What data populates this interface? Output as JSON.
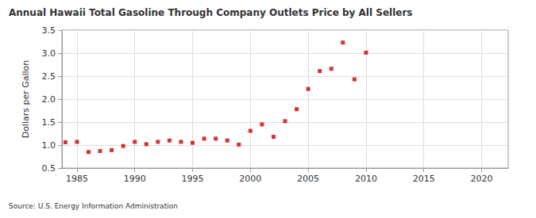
{
  "chart_data": {
    "type": "scatter",
    "title": "Annual Hawaii Total Gasoline Through Company Outlets Price by All Sellers",
    "y_label": "Dollars per Gallon",
    "source": "Source: U.S. Energy Information Administration",
    "x": [
      1984,
      1985,
      1986,
      1987,
      1988,
      1989,
      1990,
      1991,
      1992,
      1993,
      1994,
      1995,
      1996,
      1997,
      1998,
      1999,
      2000,
      2001,
      2002,
      2003,
      2004,
      2005,
      2006,
      2007,
      2008,
      2009,
      2010
    ],
    "values": [
      1.06,
      1.07,
      0.85,
      0.87,
      0.89,
      0.98,
      1.07,
      1.02,
      1.07,
      1.1,
      1.07,
      1.05,
      1.14,
      1.14,
      1.1,
      1.01,
      1.31,
      1.45,
      1.18,
      1.52,
      1.78,
      2.22,
      2.61,
      2.66,
      3.23,
      2.43,
      3.01
    ],
    "color": "#cc0000",
    "marker": "square",
    "xlim": [
      1983.7,
      2022.3
    ],
    "xticks": [
      1985,
      1990,
      1995,
      2000,
      2005,
      2010,
      2015,
      2020
    ],
    "ylim": [
      0.5,
      3.5
    ],
    "yticks": [
      0.5,
      {
        "value": 1.0,
        "label": "1.0"
      },
      1.5,
      {
        "value": 2.0,
        "label": "2.0"
      },
      2.5,
      {
        "value": 3.0,
        "label": "3.0"
      },
      3.5
    ],
    "grid": true
  }
}
